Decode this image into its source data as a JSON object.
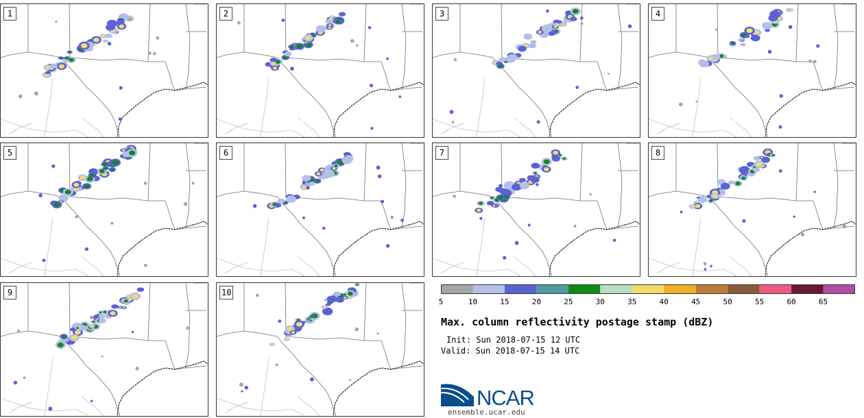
{
  "members": [
    "1",
    "2",
    "3",
    "4",
    "5",
    "6",
    "7",
    "8",
    "9",
    "10"
  ],
  "legend": {
    "title": "Max. column reflectivity postage stamp (dBZ)",
    "ticks": [
      "5",
      "10",
      "15",
      "20",
      "25",
      "30",
      "35",
      "40",
      "45",
      "50",
      "55",
      "60",
      "65"
    ],
    "colors": [
      "#a6a6a6",
      "#b4bfe8",
      "#5a63d6",
      "#4f9a9c",
      "#0f8a18",
      "#bcdcc0",
      "#f2dc6a",
      "#f0ae22",
      "#b97d38",
      "#8a5a3e",
      "#f25a86",
      "#6a1838",
      "#b24ca4"
    ]
  },
  "init_label": "Init: Sun 2018-07-15 12 UTC",
  "valid_label": "Valid: Sun 2018-07-15 14 UTC",
  "logo": {
    "text": "NCAR",
    "url": "ensemble.ucar.edu",
    "color": "#0a4d8c"
  }
}
